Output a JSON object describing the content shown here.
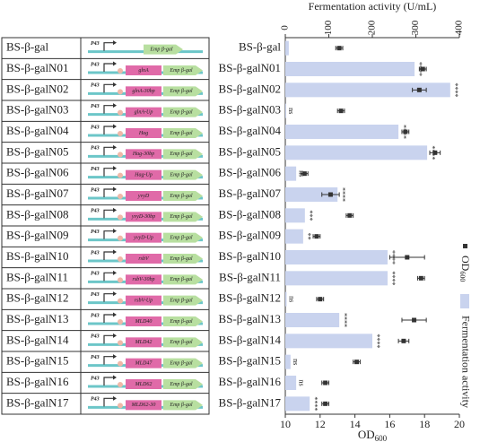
{
  "chart_data": {
    "type": "bar",
    "orientation": "horizontal",
    "xlabel": "Fermentation activity (U/mL)",
    "x2label": {
      "text": "OD",
      "sub": "600"
    },
    "categories": [
      "BS-β-gal",
      "BS-β-galN01",
      "BS-β-galN02",
      "BS-β-galN03",
      "BS-β-galN04",
      "BS-β-galN05",
      "BS-β-galN06",
      "BS-β-galN07",
      "BS-β-galN08",
      "BS-β-galN09",
      "BS-β-galN10",
      "BS-β-galN11",
      "BS-β-galN12",
      "BS-β-galN13",
      "BS-β-galN14",
      "BS-β-galN15",
      "BS-β-galN16",
      "BS-β-galN17"
    ],
    "xlim": [
      0,
      400
    ],
    "xticks": [
      0,
      100,
      200,
      300,
      400
    ],
    "x2lim": [
      10,
      20
    ],
    "x2ticks": [
      10,
      12,
      14,
      16,
      18,
      20
    ],
    "series": [
      {
        "name": "Fermentation activity",
        "color": "#c9d3ee",
        "values": [
          8,
          297,
          379,
          2,
          260,
          326,
          25,
          120,
          45,
          41,
          235,
          235,
          3,
          124,
          200,
          12,
          25,
          56
        ],
        "significance": [
          null,
          "****",
          "****",
          "ns",
          "****",
          "****",
          "ns",
          "****",
          "***",
          "**",
          "****",
          "****",
          "ns",
          "****",
          "****",
          "ns",
          "ns",
          "****"
        ]
      },
      {
        "name": {
          "text": "OD",
          "sub": "600"
        },
        "color": "#333333",
        "axis": "x2",
        "values": [
          13.1,
          17.9,
          17.7,
          13.2,
          16.9,
          18.6,
          11.1,
          12.6,
          13.7,
          11.8,
          17.0,
          17.8,
          12.0,
          17.4,
          16.8,
          14.1,
          12.3,
          12.3
        ],
        "errors": [
          0.2,
          0.2,
          0.4,
          0.2,
          0.2,
          0.3,
          0.2,
          0.5,
          0.2,
          0.2,
          1.0,
          0.2,
          0.2,
          0.7,
          0.3,
          0.2,
          0.2,
          0.2
        ]
      }
    ]
  },
  "table": {
    "promoter": "P43",
    "reporter": "Emp β-gal",
    "genes": [
      null,
      "glnA",
      "glnA-30bp",
      "glnA-Up",
      "Hag",
      "Hag-30bp",
      "Hag-Up",
      "yvyD",
      "yvyD-30bp",
      "yvyD-Up",
      "rsbV",
      "rsbV-30bp",
      "rsbV-Up",
      "MLD40",
      "MLD42",
      "MLD47",
      "MLD62",
      "MLD62-30"
    ]
  }
}
